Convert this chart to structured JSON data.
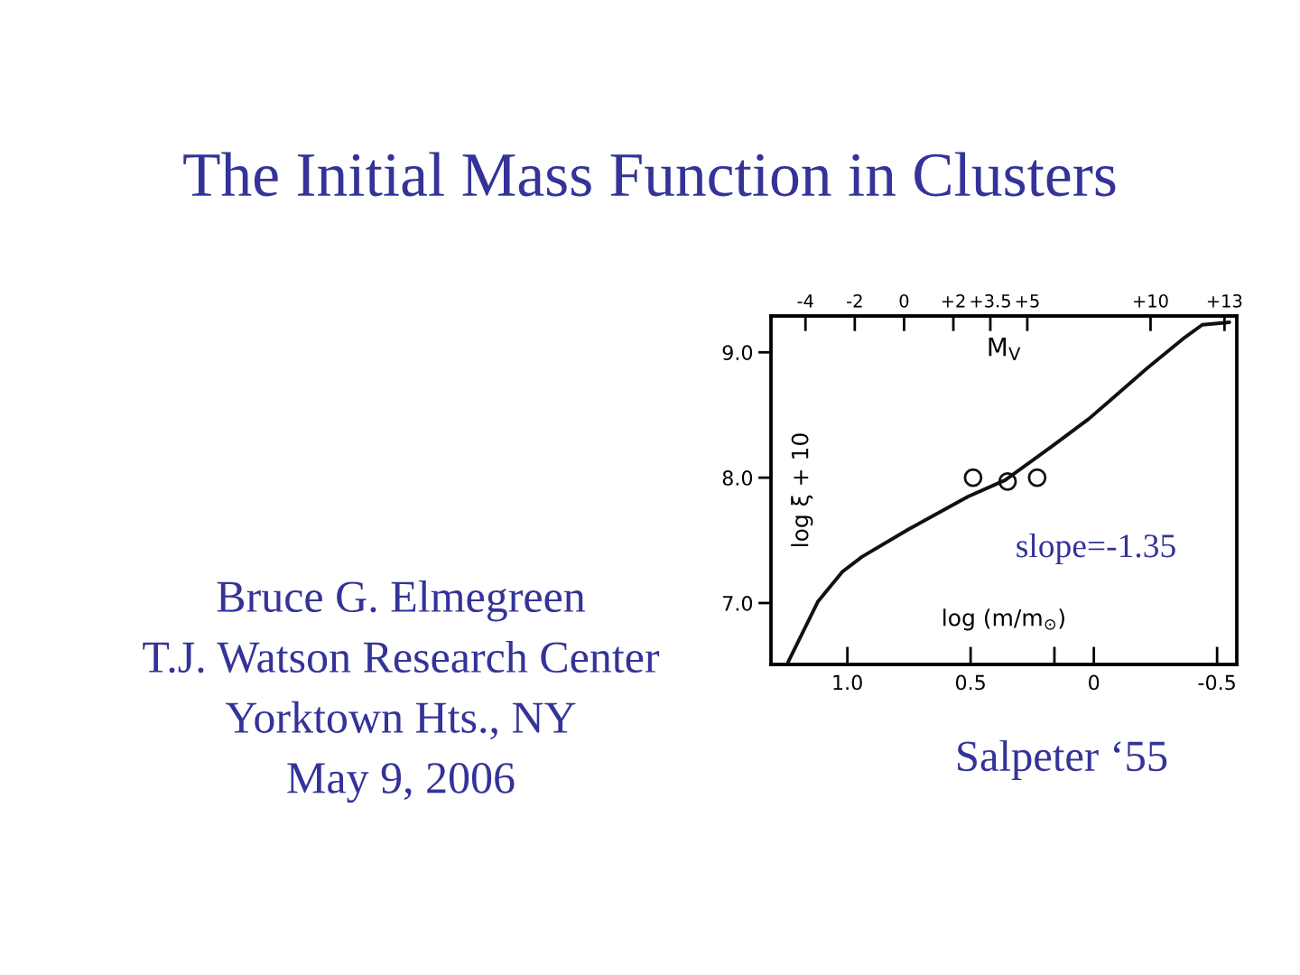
{
  "chart_data": {
    "type": "line",
    "title": "The Initial Mass Function in Clusters",
    "xlabel": "log (m/m$_{⊙}$)",
    "ylabel": "log ξ + 10",
    "x2label": "M$_{V}$",
    "annotations": [
      "Bruce G. Elmegreen\nT.J. Watson Research Center\nYorktown Hts., NY\nMay 9, 2006",
      "slope=-1.35",
      "Salpeter ‘55"
    ],
    "xlim": [
      1.31,
      -0.58
    ],
    "xticks": [
      {
        "value": 1,
        "label": "1.0"
      },
      0.5,
      {
        "value": 0.16,
        "label": null
      },
      0,
      -0.5
    ],
    "x2lim": [
      -5.4,
      13.5
    ],
    "x2ticks": [
      -4,
      -2,
      0,
      {
        "value": 2,
        "label": "+2"
      },
      {
        "value": 3.5,
        "label": "+3.5"
      },
      {
        "value": 5,
        "label": "+5"
      },
      {
        "value": 10,
        "label": "+10"
      },
      {
        "value": 13,
        "label": "+13"
      }
    ],
    "ylim": [
      6.51,
      9.29
    ],
    "yticks": [
      {
        "value": 7,
        "label": "7.0"
      },
      {
        "value": 8,
        "label": "8.0"
      },
      {
        "value": 9,
        "label": "9.0"
      }
    ],
    "series": [
      {
        "color": "#111111",
        "x": [
          1.24,
          1.12,
          1.02,
          0.94,
          0.75,
          0.51,
          0.36,
          0.17,
          0.02,
          -0.08,
          -0.22,
          -0.37,
          -0.44,
          -0.55
        ],
        "values": [
          6.53,
          7.01,
          7.25,
          7.37,
          7.59,
          7.85,
          7.98,
          8.25,
          8.47,
          8.64,
          8.88,
          9.12,
          9.22,
          9.24
        ]
      },
      {
        "type": "scatter",
        "marker": "circle",
        "color": "#111111",
        "x": [
          0.49,
          0.35,
          0.23
        ],
        "values": [
          8.0,
          7.97,
          8.0
        ]
      }
    ]
  }
}
